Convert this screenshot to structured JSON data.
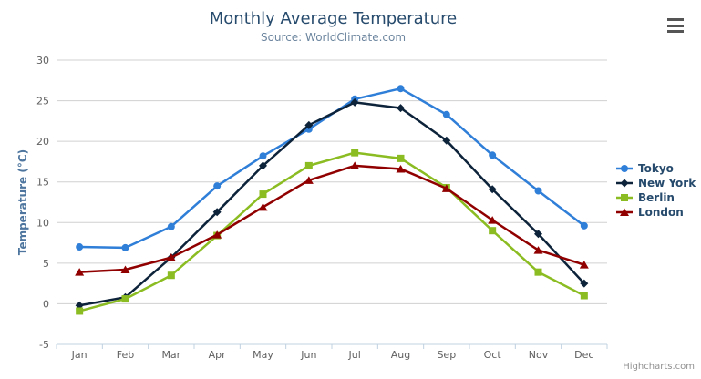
{
  "chart": {
    "credits": "Highcharts.com",
    "export_menu_icon": "hamburger-icon"
  },
  "chart_data": {
    "type": "line",
    "title": "Monthly Average Temperature",
    "subtitle": "Source: WorldClimate.com",
    "categories": [
      "Jan",
      "Feb",
      "Mar",
      "Apr",
      "May",
      "Jun",
      "Jul",
      "Aug",
      "Sep",
      "Oct",
      "Nov",
      "Dec"
    ],
    "series": [
      {
        "name": "Tokyo",
        "color": "#2f7ed8",
        "marker": "circle",
        "values": [
          7.0,
          6.9,
          9.5,
          14.5,
          18.2,
          21.5,
          25.2,
          26.5,
          23.3,
          18.3,
          13.9,
          9.6
        ]
      },
      {
        "name": "New York",
        "color": "#0d233a",
        "marker": "diamond",
        "values": [
          -0.2,
          0.8,
          5.7,
          11.3,
          17.0,
          22.0,
          24.8,
          24.1,
          20.1,
          14.1,
          8.6,
          2.5
        ]
      },
      {
        "name": "Berlin",
        "color": "#8bbc21",
        "marker": "square",
        "values": [
          -0.9,
          0.6,
          3.5,
          8.4,
          13.5,
          17.0,
          18.6,
          17.9,
          14.3,
          9.0,
          3.9,
          1.0
        ]
      },
      {
        "name": "London",
        "color": "#910000",
        "marker": "triangle",
        "values": [
          3.9,
          4.2,
          5.7,
          8.5,
          11.9,
          15.2,
          17.0,
          16.6,
          14.2,
          10.3,
          6.6,
          4.8
        ]
      }
    ],
    "xlabel": "",
    "ylabel": "Temperature (°C)",
    "ylim": [
      -5,
      30
    ],
    "tick_interval": 5,
    "grid": "horizontal",
    "legend_position": "right",
    "legend_entries": [
      "Tokyo",
      "New York",
      "Berlin",
      "London"
    ]
  }
}
